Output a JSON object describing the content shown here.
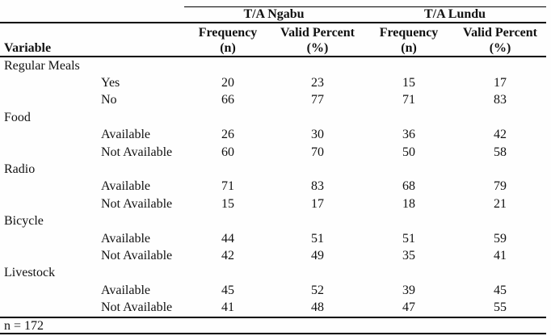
{
  "table": {
    "group_headers": [
      {
        "label": "T/A Ngabu"
      },
      {
        "label": "T/A Lundu"
      }
    ],
    "measure_headers": {
      "frequency": "Frequency",
      "valid_percent": "Valid Percent"
    },
    "unit_headers": {
      "variable": "Variable",
      "n": "(n)",
      "percent": "(%)"
    },
    "groups": [
      {
        "name": "Regular Meals",
        "rows": [
          {
            "label": "Yes",
            "values": [
              "20",
              "23",
              "15",
              "17"
            ]
          },
          {
            "label": "No",
            "values": [
              "66",
              "77",
              "71",
              "83"
            ]
          }
        ]
      },
      {
        "name": "Food",
        "rows": [
          {
            "label": "Available",
            "values": [
              "26",
              "30",
              "36",
              "42"
            ]
          },
          {
            "label": "Not Available",
            "values": [
              "60",
              "70",
              "50",
              "58"
            ]
          }
        ]
      },
      {
        "name": "Radio",
        "rows": [
          {
            "label": "Available",
            "values": [
              "71",
              "83",
              "68",
              "79"
            ]
          },
          {
            "label": "Not Available",
            "values": [
              "15",
              "17",
              "18",
              "21"
            ]
          }
        ]
      },
      {
        "name": "Bicycle",
        "rows": [
          {
            "label": "Available",
            "values": [
              "44",
              "51",
              "51",
              "59"
            ]
          },
          {
            "label": "Not Available",
            "values": [
              "42",
              "49",
              "35",
              "41"
            ]
          }
        ]
      },
      {
        "name": "Livestock",
        "rows": [
          {
            "label": "Available",
            "values": [
              "45",
              "52",
              "39",
              "45"
            ]
          },
          {
            "label": "Not Available",
            "values": [
              "41",
              "48",
              "47",
              "55"
            ]
          }
        ]
      }
    ],
    "footnote": "n = 172",
    "colors": {
      "text": "#111111",
      "rule": "#000000",
      "background": "#fefefe"
    }
  }
}
